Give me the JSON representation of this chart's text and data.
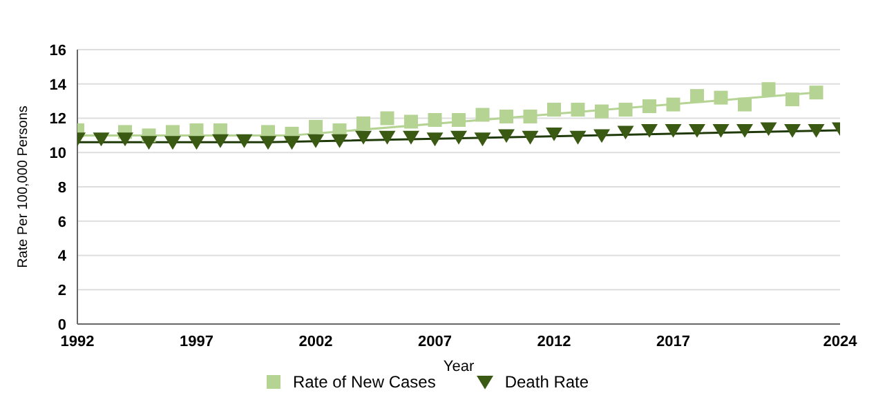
{
  "chart_data": {
    "type": "scatter",
    "xlabel": "Year",
    "ylabel": "Rate Per 100,000 Persons",
    "x": [
      1992,
      1993,
      1994,
      1995,
      1996,
      1997,
      1998,
      1999,
      2000,
      2001,
      2002,
      2003,
      2004,
      2005,
      2006,
      2007,
      2008,
      2009,
      2010,
      2011,
      2012,
      2013,
      2014,
      2015,
      2016,
      2017,
      2018,
      2019,
      2020,
      2021,
      2022,
      2023,
      2024
    ],
    "series": [
      {
        "name": "Rate of New Cases",
        "color": "#b5d494",
        "marker": "square",
        "values": [
          11.3,
          null,
          11.2,
          11.0,
          11.2,
          11.3,
          11.3,
          null,
          11.2,
          11.1,
          11.5,
          11.3,
          11.7,
          12.0,
          11.8,
          11.9,
          11.9,
          12.2,
          12.1,
          12.1,
          12.5,
          12.5,
          12.4,
          12.5,
          12.7,
          12.8,
          13.3,
          13.2,
          12.8,
          13.7,
          13.1,
          13.5,
          null
        ]
      },
      {
        "name": "Death Rate",
        "color": "#3a5a14",
        "marker": "triangle",
        "values": [
          10.8,
          10.8,
          10.8,
          10.6,
          10.6,
          10.6,
          10.7,
          10.7,
          10.6,
          10.6,
          10.7,
          10.7,
          10.9,
          10.9,
          10.9,
          10.8,
          10.9,
          10.8,
          11.0,
          10.9,
          11.1,
          10.9,
          11.0,
          11.2,
          11.3,
          11.3,
          11.3,
          11.3,
          11.3,
          11.4,
          11.3,
          11.3,
          11.4
        ]
      },
      {
        "type": "line",
        "color": "#b5d494",
        "marker": "none",
        "x": [
          1992,
          2001,
          2023
        ],
        "values": [
          11.0,
          11.0,
          13.5
        ]
      },
      {
        "type": "line",
        "color": "#1f3a08",
        "marker": "none",
        "x": [
          1992,
          2000,
          2024
        ],
        "values": [
          10.6,
          10.6,
          11.3
        ]
      }
    ],
    "xlim": [
      1992,
      2024
    ],
    "xticks": [
      1992,
      1997,
      2002,
      2007,
      2012,
      2017,
      2024
    ],
    "ylim": [
      0,
      16
    ],
    "yticks": [
      0,
      2,
      4,
      6,
      8,
      10,
      12,
      14,
      16
    ],
    "grid": "y",
    "legend": "bottom"
  }
}
